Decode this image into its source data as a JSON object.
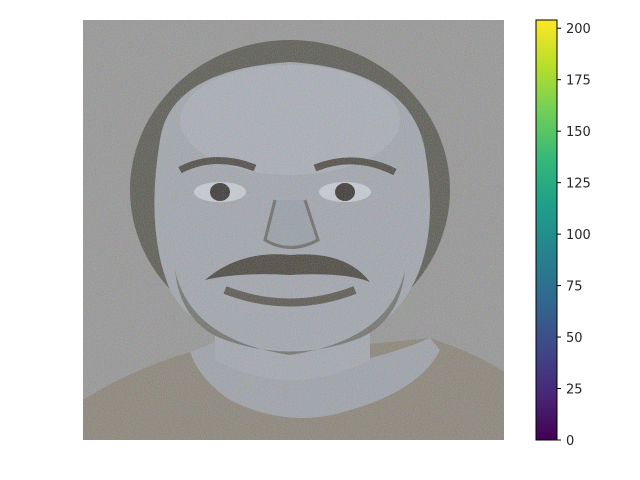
{
  "chart_data": {
    "type": "heatmap",
    "title": "",
    "xlabel": "",
    "ylabel": "",
    "axes_visible": false,
    "image_content": "neural-network reconstruction of a man's face, mostly gray with color noise",
    "colorbar": {
      "colormap": "viridis",
      "range": [
        0,
        204
      ],
      "ticks": [
        0,
        25,
        50,
        75,
        100,
        125,
        150,
        175,
        200
      ],
      "tick_labels": [
        "0",
        "25",
        "50",
        "75",
        "100",
        "125",
        "150",
        "175",
        "200"
      ],
      "colors": [
        "#440154",
        "#482878",
        "#3e4989",
        "#31688e",
        "#26828e",
        "#1f9e89",
        "#35b779",
        "#6ece58",
        "#b5de2b",
        "#fde725"
      ]
    }
  }
}
